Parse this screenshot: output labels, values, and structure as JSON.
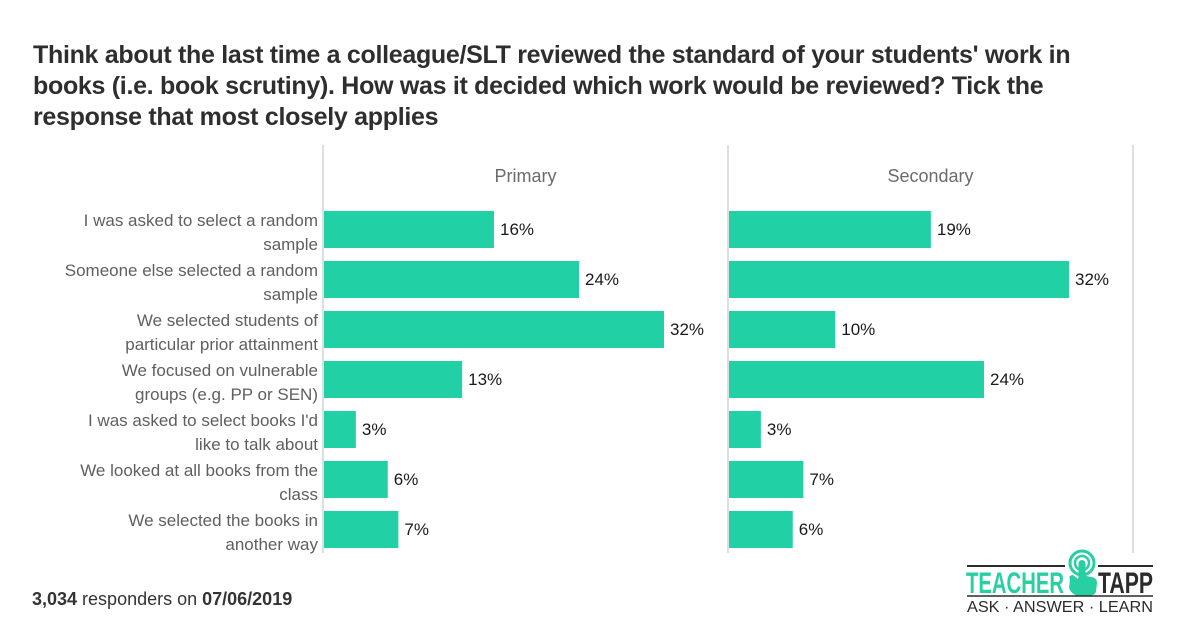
{
  "title": "Think about the last time a colleague/SLT reviewed the standard of your students' work in books (i.e. book scrutiny). How was it decided which work would be reviewed? Tick the response that most closely applies",
  "footer": {
    "count": "3,034",
    "middle": " responders on ",
    "date": "07/06/2019"
  },
  "logo": {
    "word1": "TEACHER",
    "word2": "TAPP",
    "tagline": "ASK · ANSWER · LEARN",
    "icon": "tap-hand-icon"
  },
  "colors": {
    "bar": "#21d0a5",
    "logo_teal": "#27cfa2",
    "logo_dark": "#2b2b2b"
  },
  "chart_data": {
    "type": "bar",
    "orientation": "horizontal",
    "title": "Think about the last time a colleague/SLT reviewed the standard of your students' work in books (i.e. book scrutiny). How was it decided which work would be reviewed? Tick the response that most closely applies",
    "xlabel": "",
    "ylabel": "",
    "xlim": [
      0,
      38
    ],
    "grid": false,
    "value_suffix": "%",
    "categories": [
      [
        "I was asked to select a random",
        "sample"
      ],
      [
        "Someone else selected a random",
        "sample"
      ],
      [
        "We selected students of",
        "particular prior attainment"
      ],
      [
        "We focused on vulnerable",
        "groups (e.g. PP or SEN)"
      ],
      [
        "I was asked to select books I'd",
        "like to talk about"
      ],
      [
        "We looked at all books from the",
        "class"
      ],
      [
        "We selected the books in",
        "another way"
      ]
    ],
    "series": [
      {
        "name": "Primary",
        "values": [
          16,
          24,
          32,
          13,
          3,
          6,
          7
        ]
      },
      {
        "name": "Secondary",
        "values": [
          19,
          32,
          10,
          24,
          3,
          7,
          6
        ]
      }
    ]
  }
}
